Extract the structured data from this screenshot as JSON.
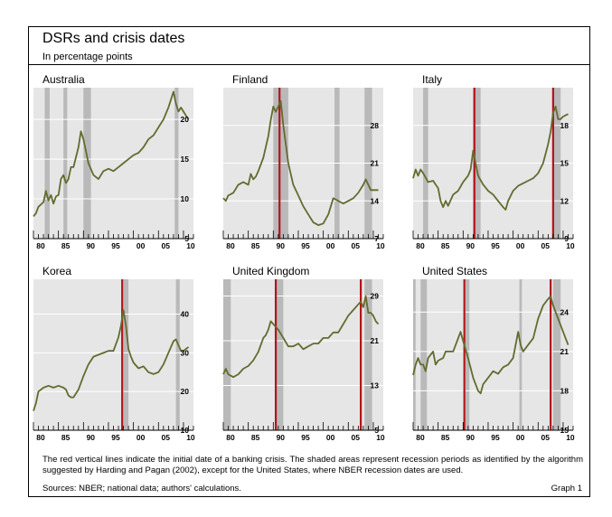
{
  "title": "DSRs and crisis dates",
  "subtitle": "In percentage points",
  "footnote": "The red vertical lines indicate the initial date of a banking crisis. The shaded areas represent recession periods as identified by the algorithm suggested by Harding and Pagan (2002), except for the United States, where NBER recession dates are used.",
  "sources": "Sources: NBER; national data; authors' calculations.",
  "graph_label": "Graph 1",
  "colors": {
    "line": "#636b2f",
    "crisis": "#b2141a",
    "recession": "#b9b9b9",
    "plot_bg": "#e6e6e6"
  },
  "chart_data": [
    {
      "type": "line",
      "title": "Australia",
      "xlim": [
        1980,
        2012
      ],
      "ylim": [
        5,
        24
      ],
      "y_ticks": [
        5,
        10,
        15,
        20
      ],
      "x_tick_labels": [
        "80",
        "85",
        "90",
        "95",
        "00",
        "05",
        "10"
      ],
      "crises": [],
      "recessions": [
        [
          1982.25,
          1983.25
        ],
        [
          1986.0,
          1986.75
        ],
        [
          1990.0,
          1991.5
        ],
        [
          2008.25,
          2009.0
        ]
      ],
      "x": [
        1980,
        1980.5,
        1981,
        1982,
        1982.5,
        1983,
        1983.5,
        1984,
        1984.5,
        1985,
        1985.5,
        1986,
        1986.5,
        1987,
        1987.5,
        1988,
        1989,
        1989.5,
        1990,
        1990.5,
        1991,
        1992,
        1993,
        1994,
        1995,
        1996,
        1997,
        1998,
        1999,
        2000,
        2001,
        2002,
        2003,
        2004,
        2005,
        2006,
        2007,
        2007.5,
        2008,
        2008.5,
        2009,
        2009.5,
        2010,
        2010.5,
        2011
      ],
      "y": [
        7.8,
        8.2,
        9.0,
        9.6,
        11.0,
        9.8,
        10.5,
        9.4,
        10.3,
        10.5,
        12.5,
        13.0,
        12.0,
        12.5,
        14.0,
        14.0,
        16.5,
        18.5,
        17.5,
        16.0,
        14.5,
        13.0,
        12.5,
        13.5,
        13.8,
        13.5,
        14.0,
        14.5,
        15.0,
        15.5,
        15.8,
        16.5,
        17.5,
        18.0,
        19.0,
        20.0,
        21.5,
        22.5,
        23.5,
        22.0,
        21.0,
        21.5,
        21.0,
        20.5,
        20.0
      ]
    },
    {
      "type": "line",
      "title": "Finland",
      "xlim": [
        1980,
        2012
      ],
      "ylim": [
        7,
        35
      ],
      "y_ticks": [
        7,
        14,
        21,
        28
      ],
      "x_tick_labels": [
        "80",
        "85",
        "90",
        "95",
        "00",
        "05",
        "10"
      ],
      "crises": [
        1991.25
      ],
      "recessions": [
        [
          1990.0,
          1993.0
        ],
        [
          2002.25,
          2003.25
        ],
        [
          2008.25,
          2009.75
        ]
      ],
      "x": [
        1980,
        1980.5,
        1981,
        1982,
        1983,
        1984,
        1985,
        1985.5,
        1986,
        1986.5,
        1987,
        1988,
        1989,
        1989.5,
        1990,
        1990.5,
        1991,
        1991.5,
        1992,
        1993,
        1994,
        1995,
        1996,
        1997,
        1998,
        1999,
        2000,
        2001,
        2002,
        2003,
        2004,
        2005,
        2006,
        2007,
        2008,
        2008.5,
        2009,
        2009.5,
        2010,
        2011
      ],
      "y": [
        14.5,
        14.0,
        15.0,
        15.5,
        17.0,
        17.5,
        17.0,
        19.0,
        18.0,
        18.5,
        19.5,
        22.0,
        26.0,
        29.0,
        31.5,
        30.5,
        31.5,
        32.5,
        28.0,
        21.0,
        17.0,
        15.0,
        13.0,
        11.5,
        10.0,
        9.5,
        9.8,
        11.5,
        14.5,
        14.0,
        13.5,
        14.0,
        14.5,
        15.5,
        17.0,
        18.0,
        17.0,
        16.0,
        16.0,
        16.0
      ]
    },
    {
      "type": "line",
      "title": "Italy",
      "xlim": [
        1980,
        2012
      ],
      "ylim": [
        9,
        21
      ],
      "y_ticks": [
        9,
        12,
        15,
        18
      ],
      "x_tick_labels": [
        "80",
        "85",
        "90",
        "95",
        "00",
        "05",
        "10"
      ],
      "crises": [
        1992.25,
        2008.0
      ],
      "recessions": [
        [
          1982.0,
          1983.0
        ],
        [
          1992.0,
          1993.5
        ],
        [
          2008.0,
          2009.5
        ]
      ],
      "x": [
        1980,
        1980.5,
        1981,
        1981.5,
        1982,
        1983,
        1984,
        1985,
        1985.5,
        1986,
        1986.5,
        1987,
        1988,
        1989,
        1990,
        1991,
        1991.5,
        1992,
        1992.5,
        1993,
        1994,
        1995,
        1996,
        1997,
        1998,
        1998.5,
        1999,
        2000,
        2001,
        2002,
        2003,
        2004,
        2005,
        2006,
        2007,
        2007.5,
        2008,
        2008.5,
        2009,
        2009.5,
        2010,
        2010.5,
        2011
      ],
      "y": [
        13.8,
        14.5,
        14.0,
        14.5,
        14.2,
        13.5,
        13.6,
        13.0,
        12.0,
        11.5,
        12.0,
        11.6,
        12.5,
        12.8,
        13.5,
        14.0,
        14.5,
        16.0,
        15.0,
        14.0,
        13.3,
        12.8,
        12.5,
        12.0,
        11.5,
        11.3,
        12.0,
        12.8,
        13.2,
        13.4,
        13.6,
        13.8,
        14.2,
        15.0,
        16.5,
        17.5,
        19.0,
        19.5,
        18.5,
        18.5,
        18.7,
        18.8,
        18.9
      ]
    },
    {
      "type": "line",
      "title": "Korea",
      "xlim": [
        1980,
        2012
      ],
      "ylim": [
        10,
        49
      ],
      "y_ticks": [
        10,
        20,
        30,
        40
      ],
      "x_tick_labels": [
        "80",
        "85",
        "90",
        "95",
        "00",
        "05",
        "10"
      ],
      "crises": [
        1997.75
      ],
      "recessions": [
        [
          1998.0,
          1999.0
        ],
        [
          2008.5,
          2009.25
        ]
      ],
      "x": [
        1980,
        1980.5,
        1981,
        1982,
        1983,
        1984,
        1985,
        1986,
        1986.5,
        1987,
        1987.5,
        1988,
        1989,
        1990,
        1991,
        1992,
        1993,
        1994,
        1995,
        1996,
        1997,
        1997.5,
        1998,
        1998.5,
        1999,
        1999.5,
        2000,
        2001,
        2002,
        2003,
        2004,
        2005,
        2006,
        2007,
        2008,
        2008.5,
        2009,
        2009.5,
        2010,
        2010.5,
        2011
      ],
      "y": [
        15.0,
        17.0,
        20.0,
        21.0,
        21.5,
        21.0,
        21.5,
        21.0,
        20.5,
        19.0,
        18.5,
        18.5,
        20.5,
        24.0,
        27.0,
        29.0,
        29.5,
        30.0,
        30.5,
        30.5,
        34.0,
        37.0,
        41.0,
        37.0,
        31.0,
        29.0,
        27.5,
        26.0,
        26.5,
        25.0,
        24.5,
        25.0,
        27.0,
        30.0,
        33.0,
        33.5,
        32.0,
        30.5,
        30.5,
        31.0,
        31.5
      ]
    },
    {
      "type": "line",
      "title": "United Kingdom",
      "xlim": [
        1980,
        2012
      ],
      "ylim": [
        5,
        32
      ],
      "y_ticks": [
        5,
        13,
        21,
        29
      ],
      "x_tick_labels": [
        "80",
        "85",
        "90",
        "95",
        "00",
        "05",
        "10"
      ],
      "crises": [
        1990.5,
        2007.5
      ],
      "recessions": [
        [
          1980.0,
          1981.5
        ],
        [
          1990.5,
          1992.0
        ],
        [
          2008.25,
          2009.75
        ]
      ],
      "x": [
        1980,
        1980.5,
        1981,
        1982,
        1983,
        1984,
        1985,
        1986,
        1987,
        1988,
        1988.5,
        1989,
        1989.5,
        1990,
        1991,
        1992,
        1993,
        1994,
        1995,
        1996,
        1997,
        1998,
        1999,
        2000,
        2001,
        2002,
        2003,
        2004,
        2005,
        2006,
        2007,
        2007.5,
        2008,
        2008.5,
        2009,
        2009.5,
        2010,
        2010.5,
        2011
      ],
      "y": [
        15.0,
        16.0,
        15.0,
        14.5,
        15.0,
        16.0,
        16.5,
        17.5,
        19.0,
        21.5,
        22.0,
        23.0,
        24.5,
        24.0,
        23.0,
        21.5,
        20.0,
        20.0,
        20.5,
        19.5,
        20.0,
        20.5,
        20.5,
        21.5,
        21.5,
        22.5,
        22.5,
        24.0,
        25.5,
        26.5,
        27.5,
        28.0,
        27.0,
        29.0,
        26.0,
        26.0,
        25.5,
        24.5,
        24.0
      ]
    },
    {
      "type": "line",
      "title": "United States",
      "xlim": [
        1980,
        2012
      ],
      "ylim": [
        15,
        26.5
      ],
      "y_ticks": [
        15,
        18,
        21,
        24
      ],
      "x_tick_labels": [
        "80",
        "85",
        "90",
        "95",
        "00",
        "05",
        "10"
      ],
      "crises": [
        1990.25,
        2007.5
      ],
      "recessions": [
        [
          1980.0,
          1980.5
        ],
        [
          1981.5,
          1982.75
        ],
        [
          1990.5,
          1991.25
        ],
        [
          2001.25,
          2001.75
        ],
        [
          2008.0,
          2009.5
        ]
      ],
      "x": [
        1980,
        1980.5,
        1981,
        1981.5,
        1982,
        1982.5,
        1983,
        1984,
        1984.5,
        1985,
        1986,
        1986.5,
        1987,
        1988,
        1989,
        1989.5,
        1990,
        1991,
        1992,
        1993,
        1993.5,
        1994,
        1995,
        1996,
        1997,
        1998,
        1999,
        2000,
        2000.5,
        2001,
        2001.5,
        2002,
        2003,
        2004,
        2005,
        2006,
        2007,
        2007.5,
        2008,
        2009,
        2010,
        2011
      ],
      "y": [
        19.2,
        20.0,
        20.5,
        20.0,
        20.0,
        19.5,
        20.5,
        21.0,
        20.0,
        20.3,
        20.5,
        21.0,
        21.0,
        21.0,
        22.0,
        22.5,
        21.8,
        20.5,
        19.0,
        18.0,
        17.8,
        18.5,
        19.0,
        19.5,
        19.3,
        19.8,
        20.0,
        20.5,
        21.5,
        22.5,
        21.5,
        21.0,
        21.5,
        22.0,
        23.5,
        24.5,
        25.0,
        25.2,
        24.5,
        23.5,
        22.5,
        21.5
      ]
    }
  ]
}
